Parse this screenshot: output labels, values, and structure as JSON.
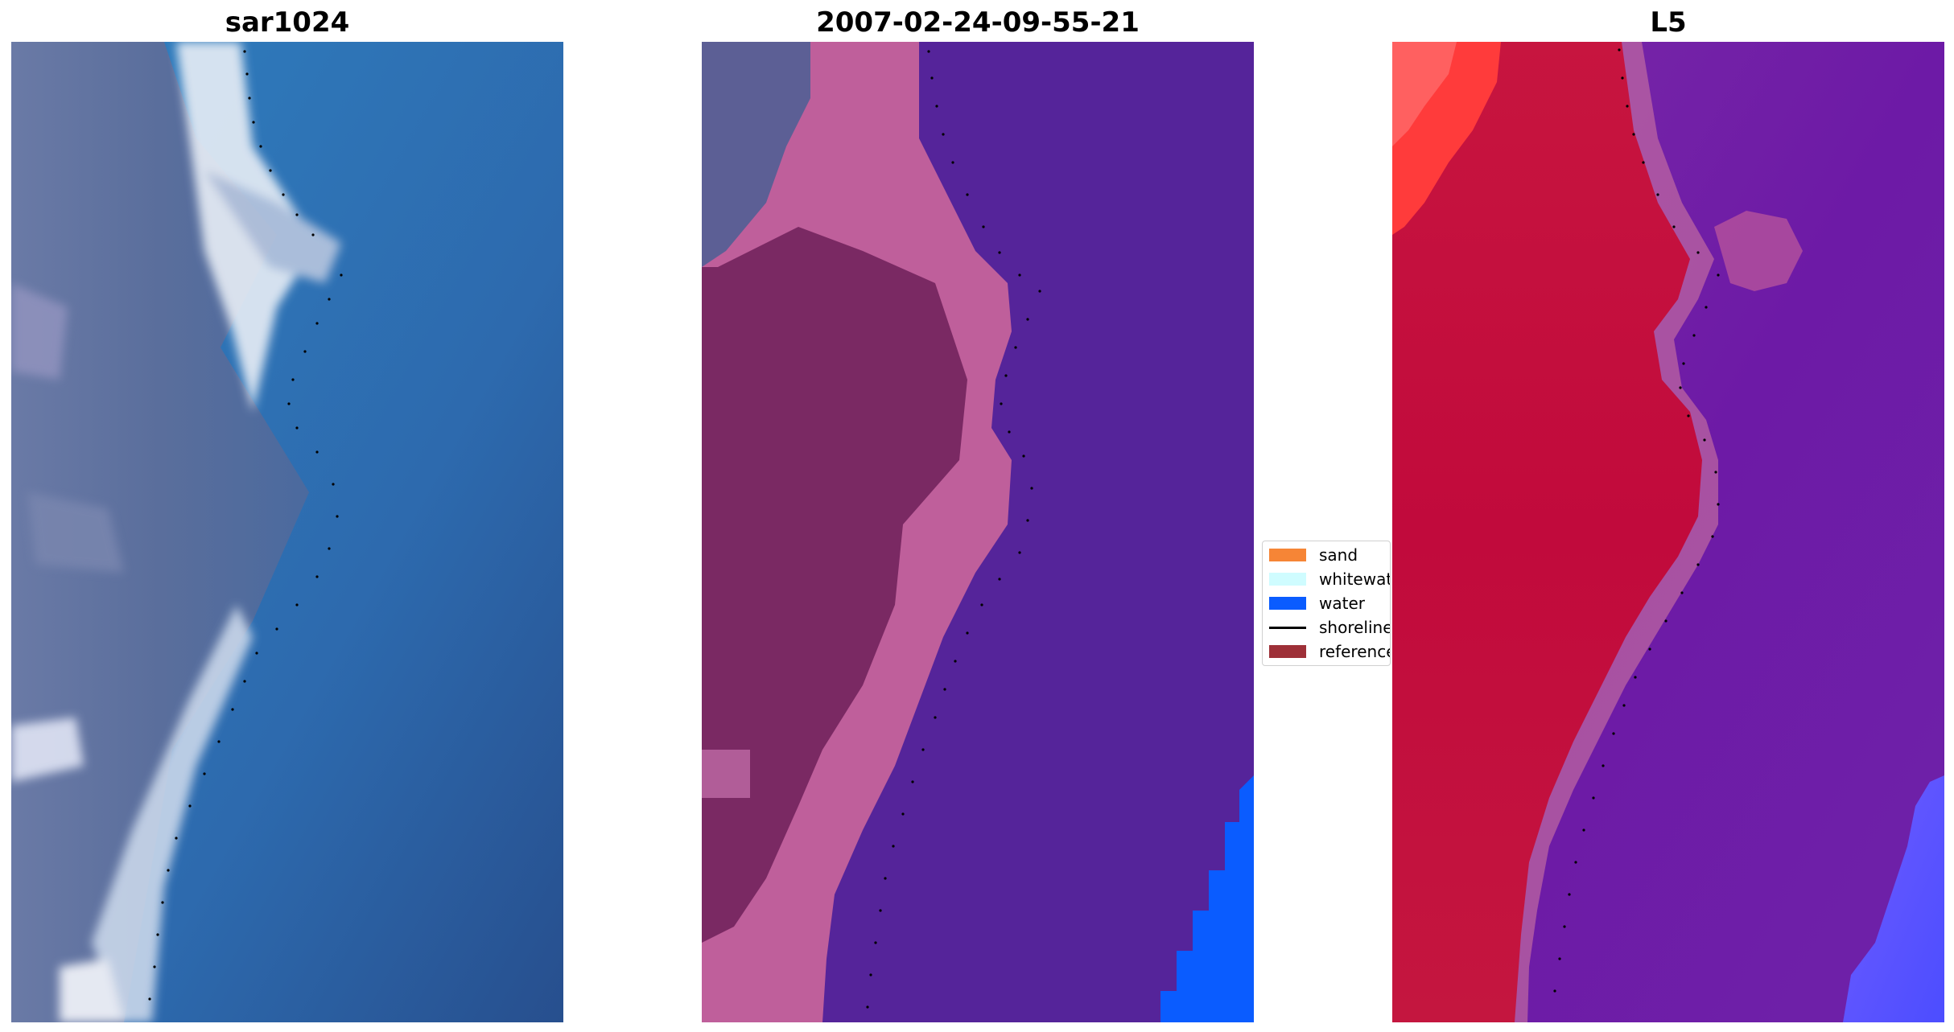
{
  "panels": [
    {
      "title": "sar1024",
      "kind": "rgb-image"
    },
    {
      "title": "2007-02-24-09-55-21",
      "kind": "classification"
    },
    {
      "title": "L5",
      "kind": "probability-map"
    }
  ],
  "legend": {
    "items": [
      {
        "label": "sand",
        "color": "#f68536"
      },
      {
        "label": "whitewater",
        "color": "#cffcff"
      },
      {
        "label": "water",
        "color": "#0a5cff"
      },
      {
        "label": "shoreline",
        "color": "#000000",
        "style": "line"
      },
      {
        "label": "reference",
        "color": "#9e3038"
      }
    ]
  },
  "colors": {
    "water_class": "#55249a",
    "sand_class_shade": "#7a2963",
    "sand_class_edge": "#bf5f9b",
    "l5_land": "#c10a3c",
    "l5_water": "#6f1ba8",
    "l5_edge_bright": "#ff2b2b",
    "l5_sea_blue": "#5b59ff",
    "sar_dark": "#586b97",
    "sar_sea": "#3374b6",
    "sar_white": "#f2f4f8"
  }
}
